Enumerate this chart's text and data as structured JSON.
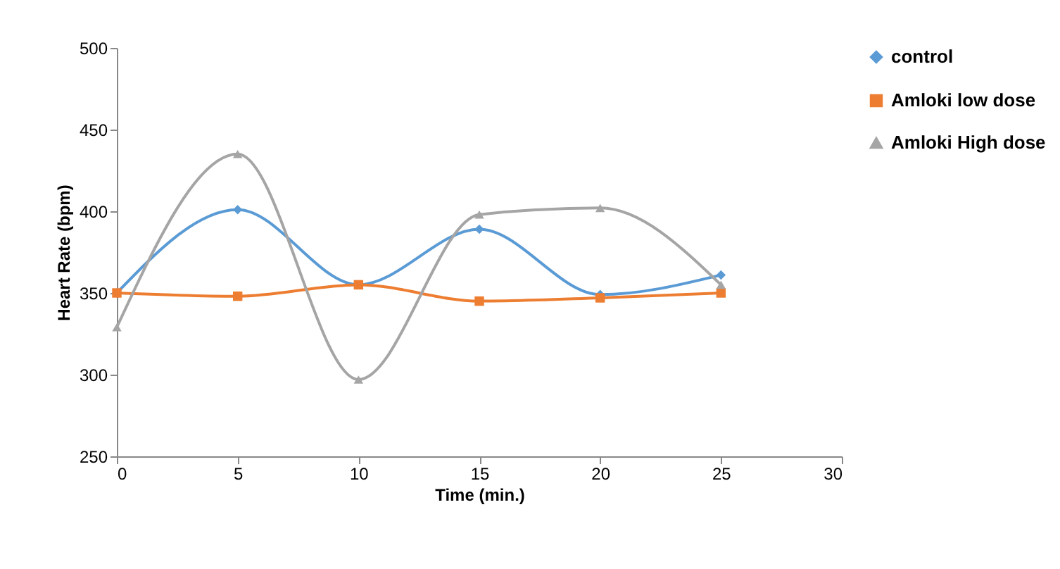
{
  "chart_data": {
    "type": "line",
    "xlabel": "Time (min.)",
    "ylabel": "Heart Rate (bpm)",
    "x": [
      0,
      5,
      10,
      15,
      20,
      25
    ],
    "series": [
      {
        "name": "control",
        "color": "#5b9bd5",
        "marker": "diamond",
        "values": [
          350,
          401,
          355,
          389,
          349,
          361
        ]
      },
      {
        "name": "Amloki low dose",
        "color": "#ed7d31",
        "marker": "square",
        "values": [
          350,
          348,
          355,
          345,
          347,
          350
        ]
      },
      {
        "name": "Amloki High dose",
        "color": "#a5a5a5",
        "marker": "triangle",
        "values": [
          329,
          435,
          297,
          398,
          402,
          355
        ]
      }
    ],
    "xlim": [
      0,
      30
    ],
    "xticks": [
      0,
      5,
      10,
      15,
      20,
      25,
      30
    ],
    "ylim": [
      250,
      500
    ],
    "yticks": [
      250,
      300,
      350,
      400,
      450,
      500
    ],
    "grid": false,
    "legend": "right",
    "line_style": "solid"
  }
}
